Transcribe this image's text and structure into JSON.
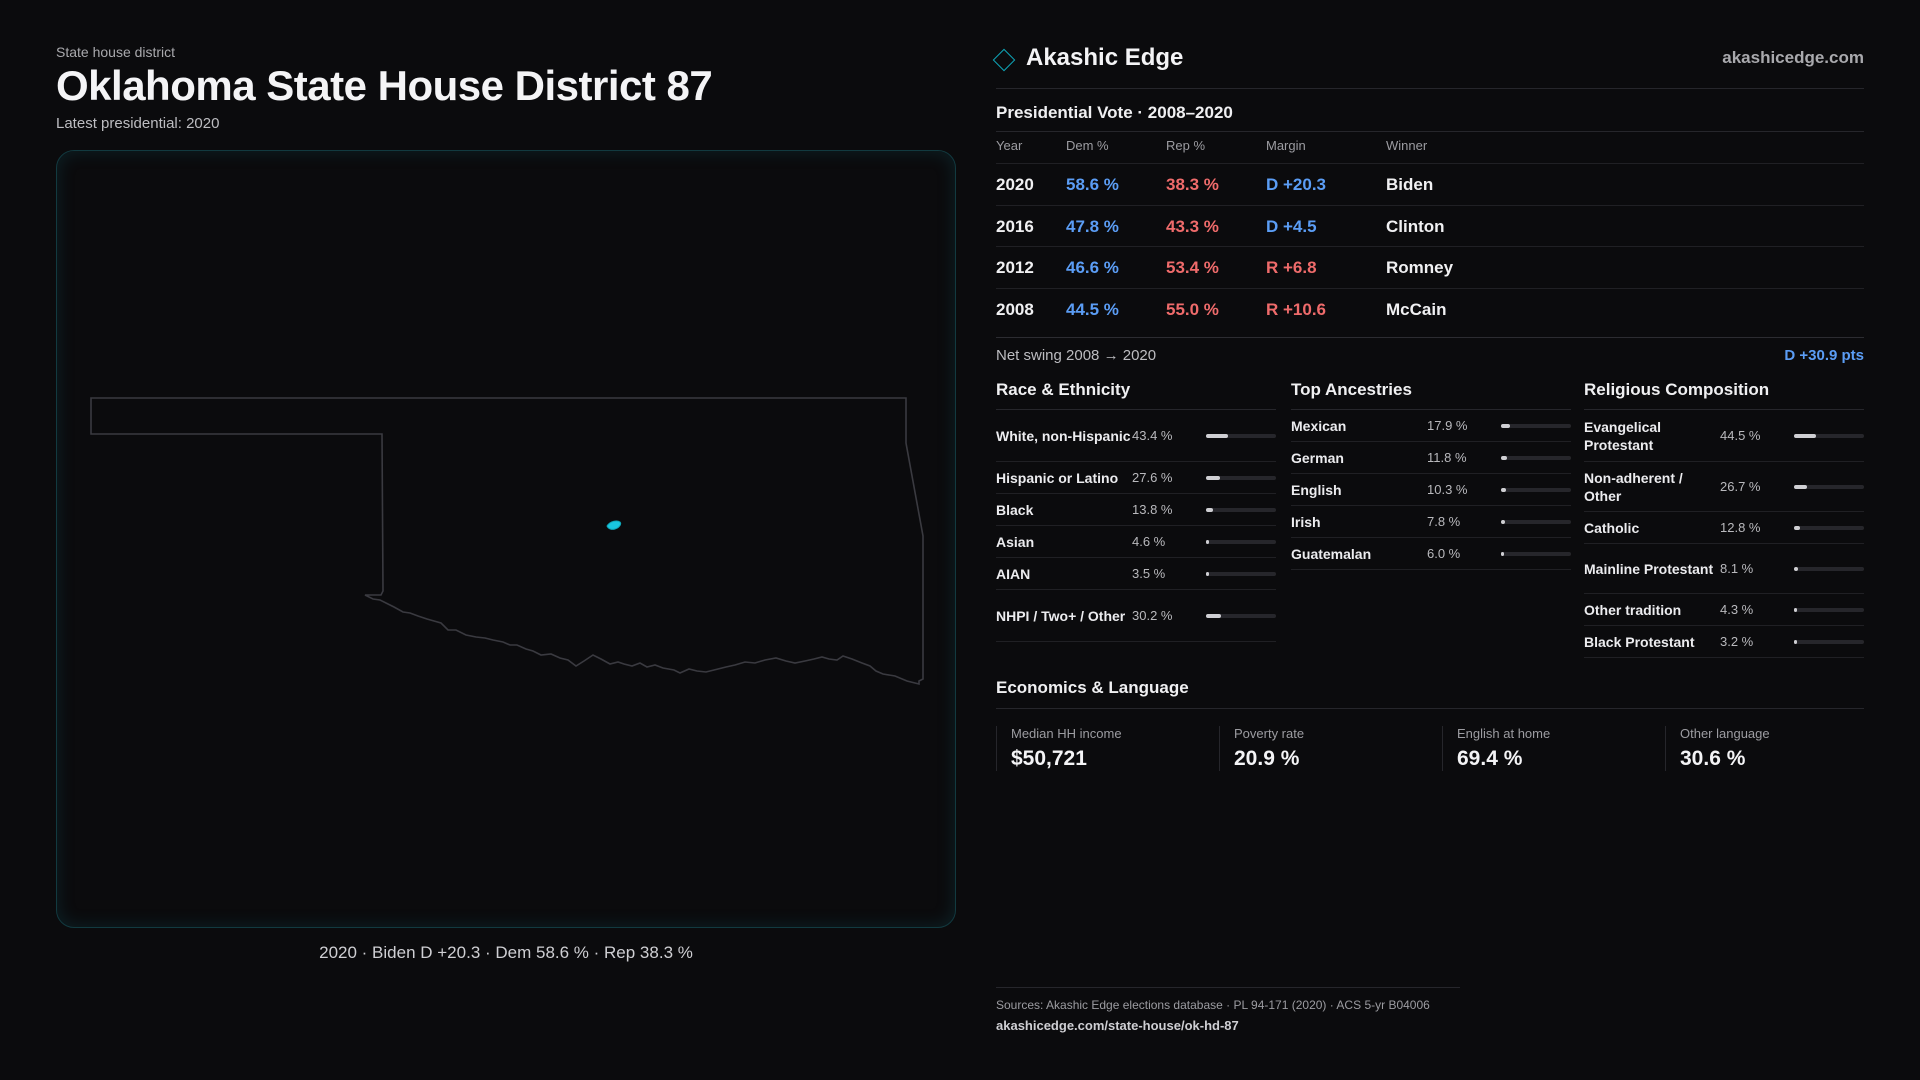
{
  "header": {
    "eyebrow": "State house district",
    "title": "Oklahoma State House District 87",
    "subtitle": "Latest presidential: 2020"
  },
  "map": {
    "caption": "2020 · Biden D +20.3 · Dem 58.6 % · Rep 38.3 %",
    "district_color": "#19c6e0",
    "state_outline_color": "#3a3a40"
  },
  "brand": {
    "name": "Akashic Edge",
    "site": "akashicedge.com"
  },
  "vote": {
    "title": "Presidential Vote · 2008–2020",
    "headers": [
      "Year",
      "Dem %",
      "Rep %",
      "Margin",
      "Winner"
    ],
    "rows": [
      {
        "year": "2020",
        "dem": "58.6 %",
        "rep": "38.3 %",
        "margin": "D +20.3",
        "party": "D",
        "winner": "Biden"
      },
      {
        "year": "2016",
        "dem": "47.8 %",
        "rep": "43.3 %",
        "margin": "D +4.5",
        "party": "D",
        "winner": "Clinton"
      },
      {
        "year": "2012",
        "dem": "46.6 %",
        "rep": "53.4 %",
        "margin": "R +6.8",
        "party": "R",
        "winner": "Romney"
      },
      {
        "year": "2008",
        "dem": "44.5 %",
        "rep": "55.0 %",
        "margin": "R +10.6",
        "party": "R",
        "winner": "McCain"
      }
    ],
    "swing_label": "Net swing 2008 → 2020",
    "swing_value": "D +30.9 pts"
  },
  "race": {
    "title": "Race & Ethnicity",
    "items": [
      {
        "label": "White, non-Hispanic",
        "value": "43.4 %",
        "pct": 43.4
      },
      {
        "label": "Hispanic or Latino",
        "value": "27.6 %",
        "pct": 27.6
      },
      {
        "label": "Black",
        "value": "13.8 %",
        "pct": 13.8
      },
      {
        "label": "Asian",
        "value": "4.6 %",
        "pct": 4.6
      },
      {
        "label": "AIAN",
        "value": "3.5 %",
        "pct": 3.5
      },
      {
        "label": "NHPI / Two+ / Other",
        "value": "30.2 %",
        "pct": 30.2
      }
    ]
  },
  "ancestry": {
    "title": "Top Ancestries",
    "items": [
      {
        "label": "Mexican",
        "value": "17.9 %",
        "pct": 17.9
      },
      {
        "label": "German",
        "value": "11.8 %",
        "pct": 11.8
      },
      {
        "label": "English",
        "value": "10.3 %",
        "pct": 10.3
      },
      {
        "label": "Irish",
        "value": "7.8 %",
        "pct": 7.8
      },
      {
        "label": "Guatemalan",
        "value": "6.0 %",
        "pct": 6.0
      }
    ]
  },
  "religion": {
    "title": "Religious Composition",
    "items": [
      {
        "label": "Evangelical Protestant",
        "value": "44.5 %",
        "pct": 44.5
      },
      {
        "label": "Non-adherent / Other",
        "value": "26.7 %",
        "pct": 26.7
      },
      {
        "label": "Catholic",
        "value": "12.8 %",
        "pct": 12.8
      },
      {
        "label": "Mainline Protestant",
        "value": "8.1 %",
        "pct": 8.1
      },
      {
        "label": "Other tradition",
        "value": "4.3 %",
        "pct": 4.3
      },
      {
        "label": "Black Protestant",
        "value": "3.2 %",
        "pct": 3.2
      }
    ]
  },
  "economics": {
    "title": "Economics & Language",
    "items": [
      {
        "label": "Median HH income",
        "value": "$50,721"
      },
      {
        "label": "Poverty rate",
        "value": "20.9 %"
      },
      {
        "label": "English at home",
        "value": "69.4 %"
      },
      {
        "label": "Other language",
        "value": "30.6 %"
      }
    ]
  },
  "footer": {
    "sources": "Sources: Akashic Edge elections database · PL 94-171 (2020) · ACS 5-yr B04006",
    "url": "akashicedge.com/state-house/ok-hd-87"
  },
  "colors": {
    "dem": "#5b9df5",
    "rep": "#ef6b6b",
    "accent": "#0ea5b7"
  }
}
